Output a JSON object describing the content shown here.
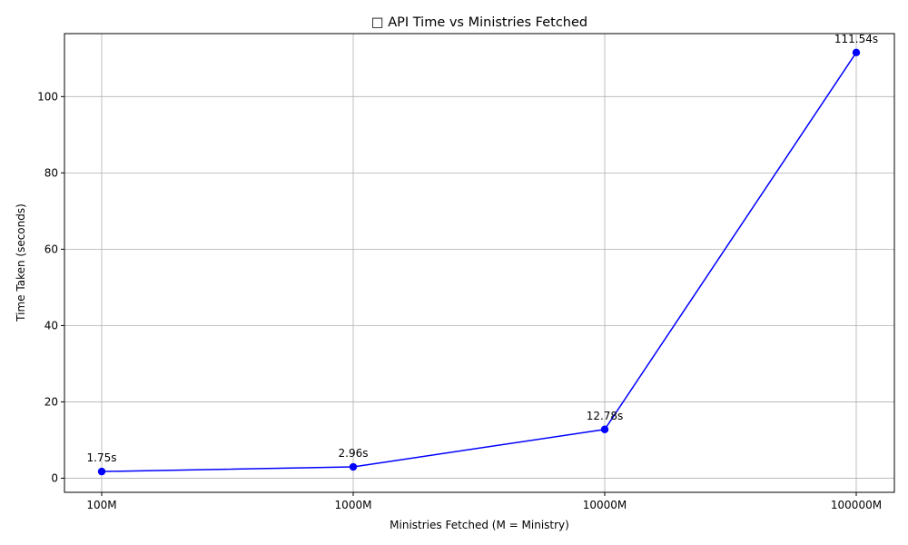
{
  "chart_data": {
    "type": "line",
    "title": "□ API Time vs Ministries Fetched",
    "xlabel": "Ministries Fetched (M = Ministry)",
    "ylabel": "Time Taken (seconds)",
    "categories": [
      "100M",
      "1000M",
      "10000M",
      "100000M"
    ],
    "series": [
      {
        "values": [
          1.75,
          2.96,
          12.78,
          111.54
        ],
        "labels": [
          "1.75s",
          "2.96s",
          "12.78s",
          "111.54s"
        ],
        "color": "#0000ff"
      }
    ],
    "ylim": [
      -3.7,
      116.5
    ],
    "yticks": [
      0,
      20,
      40,
      60,
      80,
      100
    ],
    "grid": true
  }
}
